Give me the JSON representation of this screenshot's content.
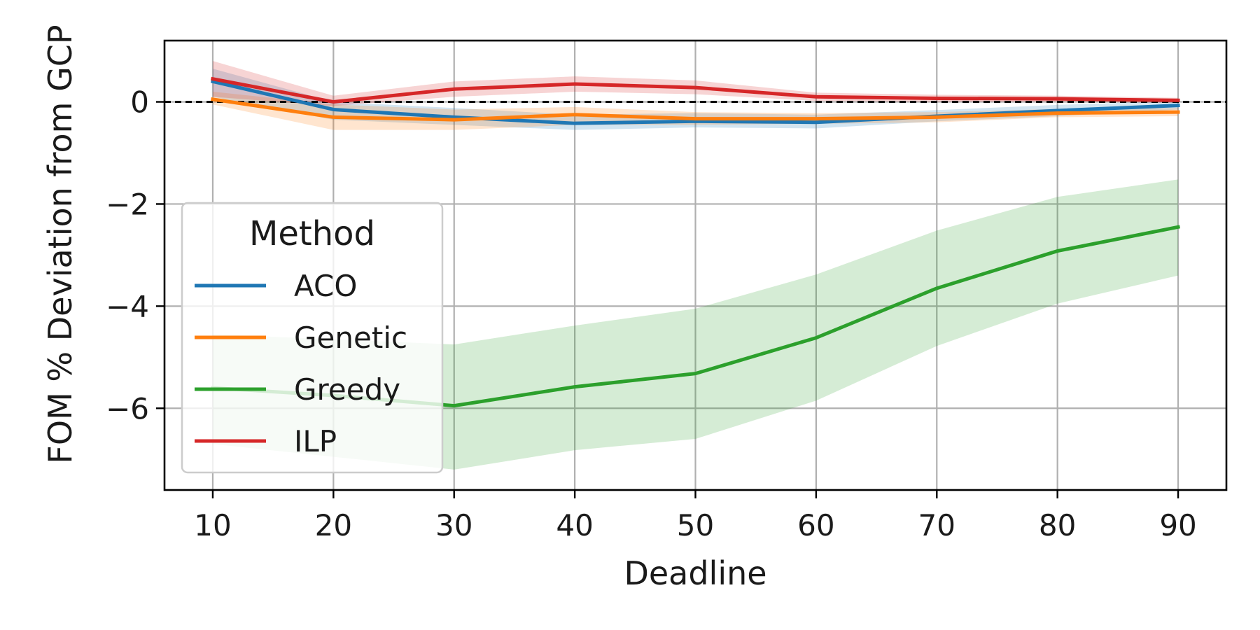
{
  "chart_data": {
    "type": "line",
    "title": "",
    "xlabel": "Deadline",
    "ylabel": "FOM % Deviation from GCP",
    "xlim": [
      6,
      94
    ],
    "ylim": [
      -7.6,
      1.2
    ],
    "x_ticks": [
      10,
      20,
      30,
      40,
      50,
      60,
      70,
      80,
      90
    ],
    "y_ticks": [
      0,
      -2,
      -4,
      -6
    ],
    "y_tick_labels": [
      "0",
      "−2",
      "−4",
      "−6"
    ],
    "grid": true,
    "reference_line": {
      "y": 0,
      "style": "dashed",
      "color": "#000000"
    },
    "x": [
      10,
      20,
      30,
      40,
      50,
      60,
      70,
      80,
      90
    ],
    "series": [
      {
        "name": "ACO",
        "color": "#1f77b4",
        "values": [
          0.4,
          -0.15,
          -0.3,
          -0.42,
          -0.38,
          -0.4,
          -0.28,
          -0.17,
          -0.07
        ],
        "lower": [
          0.1,
          -0.35,
          -0.45,
          -0.55,
          -0.5,
          -0.52,
          -0.38,
          -0.28,
          -0.15
        ],
        "upper": [
          0.65,
          0.0,
          -0.12,
          -0.25,
          -0.22,
          -0.25,
          -0.16,
          -0.06,
          0.02
        ]
      },
      {
        "name": "Genetic",
        "color": "#ff7f0e",
        "values": [
          0.05,
          -0.3,
          -0.35,
          -0.25,
          -0.33,
          -0.33,
          -0.3,
          -0.22,
          -0.2
        ],
        "lower": [
          -0.05,
          -0.55,
          -0.55,
          -0.45,
          -0.45,
          -0.43,
          -0.4,
          -0.3,
          -0.28
        ],
        "upper": [
          0.2,
          -0.05,
          -0.15,
          -0.1,
          -0.2,
          -0.22,
          -0.2,
          -0.14,
          -0.12
        ]
      },
      {
        "name": "Greedy",
        "color": "#2ca02c",
        "values": [
          -5.6,
          -5.75,
          -5.95,
          -5.58,
          -5.32,
          -4.62,
          -3.65,
          -2.92,
          -2.45
        ],
        "lower": [
          -6.7,
          -6.95,
          -7.2,
          -6.82,
          -6.6,
          -5.85,
          -4.78,
          -3.95,
          -3.4
        ],
        "upper": [
          -4.55,
          -4.65,
          -4.75,
          -4.38,
          -4.05,
          -3.38,
          -2.52,
          -1.86,
          -1.52
        ]
      },
      {
        "name": "ILP",
        "color": "#d62728",
        "values": [
          0.45,
          0.0,
          0.25,
          0.35,
          0.28,
          0.1,
          0.07,
          0.06,
          0.03
        ],
        "lower": [
          0.1,
          -0.08,
          0.1,
          0.2,
          0.15,
          0.02,
          0.0,
          0.0,
          -0.02
        ],
        "upper": [
          0.8,
          0.12,
          0.4,
          0.5,
          0.42,
          0.18,
          0.14,
          0.12,
          0.08
        ]
      }
    ],
    "legend": {
      "title": "Method",
      "placement": "lower-left",
      "entries": [
        "ACO",
        "Genetic",
        "Greedy",
        "ILP"
      ]
    }
  }
}
